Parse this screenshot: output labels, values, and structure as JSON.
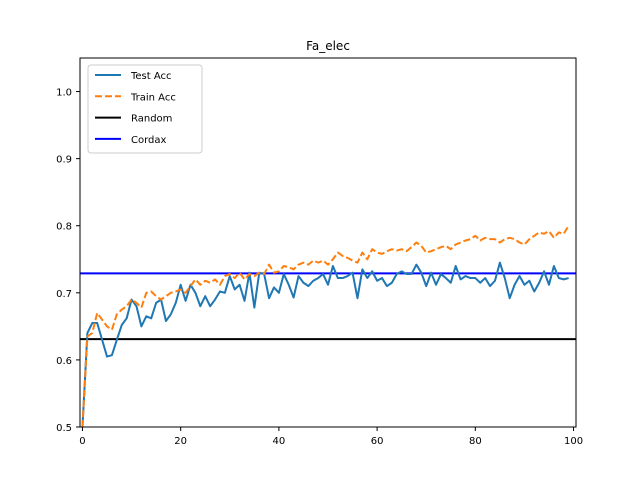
{
  "chart_data": {
    "type": "line",
    "title": "Fa_elec",
    "xlabel": "",
    "ylabel": "",
    "xlim": [
      -0.5,
      100.5
    ],
    "ylim": [
      0.5,
      1.05
    ],
    "xticks": [
      0,
      20,
      40,
      60,
      80,
      100
    ],
    "xtick_labels": [
      "0",
      "20",
      "40",
      "60",
      "80",
      "100"
    ],
    "yticks": [
      0.5,
      0.6,
      0.7,
      0.8,
      0.9,
      1.0
    ],
    "ytick_labels": [
      "0.5",
      "0.6",
      "0.7",
      "0.8",
      "0.9",
      "1.0"
    ],
    "grid": false,
    "legend_position": "top-left",
    "series": [
      {
        "name": "Test Acc",
        "color": "#1f77b4",
        "style": "solid",
        "x": [
          0,
          1,
          2,
          3,
          4,
          5,
          6,
          7,
          8,
          9,
          10,
          11,
          12,
          13,
          14,
          15,
          16,
          17,
          18,
          19,
          20,
          21,
          22,
          23,
          24,
          25,
          26,
          27,
          28,
          29,
          30,
          31,
          32,
          33,
          34,
          35,
          36,
          37,
          38,
          39,
          40,
          41,
          42,
          43,
          44,
          45,
          46,
          47,
          48,
          49,
          50,
          51,
          52,
          53,
          54,
          55,
          56,
          57,
          58,
          59,
          60,
          61,
          62,
          63,
          64,
          65,
          66,
          67,
          68,
          69,
          70,
          71,
          72,
          73,
          74,
          75,
          76,
          77,
          78,
          79,
          80,
          81,
          82,
          83,
          84,
          85,
          86,
          87,
          88,
          89,
          90,
          91,
          92,
          93,
          94,
          95,
          96,
          97,
          98,
          99
        ],
        "values": [
          0.5,
          0.64,
          0.655,
          0.655,
          0.63,
          0.605,
          0.607,
          0.63,
          0.652,
          0.662,
          0.69,
          0.68,
          0.65,
          0.665,
          0.662,
          0.685,
          0.69,
          0.658,
          0.668,
          0.685,
          0.712,
          0.688,
          0.712,
          0.7,
          0.68,
          0.695,
          0.68,
          0.69,
          0.702,
          0.7,
          0.725,
          0.705,
          0.712,
          0.688,
          0.73,
          0.678,
          0.73,
          0.728,
          0.692,
          0.708,
          0.7,
          0.728,
          0.712,
          0.693,
          0.725,
          0.715,
          0.71,
          0.718,
          0.722,
          0.728,
          0.712,
          0.74,
          0.722,
          0.722,
          0.725,
          0.73,
          0.692,
          0.735,
          0.722,
          0.732,
          0.718,
          0.722,
          0.71,
          0.715,
          0.728,
          0.732,
          0.728,
          0.728,
          0.742,
          0.73,
          0.71,
          0.73,
          0.712,
          0.728,
          0.722,
          0.715,
          0.74,
          0.72,
          0.725,
          0.722,
          0.722,
          0.715,
          0.722,
          0.71,
          0.718,
          0.745,
          0.722,
          0.692,
          0.712,
          0.725,
          0.712,
          0.718,
          0.702,
          0.715,
          0.732,
          0.712,
          0.74,
          0.722,
          0.72,
          0.722
        ]
      },
      {
        "name": "Train Acc",
        "color": "#ff7f0e",
        "style": "dashed",
        "x": [
          0,
          1,
          2,
          3,
          4,
          5,
          6,
          7,
          8,
          9,
          10,
          11,
          12,
          13,
          14,
          15,
          16,
          17,
          18,
          19,
          20,
          21,
          22,
          23,
          24,
          25,
          26,
          27,
          28,
          29,
          30,
          31,
          32,
          33,
          34,
          35,
          36,
          37,
          38,
          39,
          40,
          41,
          42,
          43,
          44,
          45,
          46,
          47,
          48,
          49,
          50,
          51,
          52,
          53,
          54,
          55,
          56,
          57,
          58,
          59,
          60,
          61,
          62,
          63,
          64,
          65,
          66,
          67,
          68,
          69,
          70,
          71,
          72,
          73,
          74,
          75,
          76,
          77,
          78,
          79,
          80,
          81,
          82,
          83,
          84,
          85,
          86,
          87,
          88,
          89,
          90,
          91,
          92,
          93,
          94,
          95,
          96,
          97,
          98,
          99
        ],
        "values": [
          0.5,
          0.635,
          0.64,
          0.67,
          0.66,
          0.65,
          0.645,
          0.668,
          0.675,
          0.68,
          0.69,
          0.685,
          0.678,
          0.7,
          0.702,
          0.695,
          0.69,
          0.695,
          0.7,
          0.702,
          0.705,
          0.7,
          0.71,
          0.72,
          0.712,
          0.718,
          0.715,
          0.72,
          0.712,
          0.725,
          0.728,
          0.722,
          0.73,
          0.72,
          0.728,
          0.725,
          0.73,
          0.728,
          0.742,
          0.73,
          0.732,
          0.74,
          0.738,
          0.735,
          0.742,
          0.745,
          0.742,
          0.748,
          0.745,
          0.748,
          0.742,
          0.75,
          0.76,
          0.755,
          0.752,
          0.748,
          0.745,
          0.76,
          0.75,
          0.765,
          0.76,
          0.758,
          0.762,
          0.765,
          0.763,
          0.765,
          0.762,
          0.768,
          0.775,
          0.77,
          0.76,
          0.762,
          0.765,
          0.768,
          0.77,
          0.765,
          0.772,
          0.775,
          0.778,
          0.78,
          0.785,
          0.778,
          0.782,
          0.78,
          0.78,
          0.775,
          0.78,
          0.782,
          0.78,
          0.775,
          0.772,
          0.78,
          0.785,
          0.79,
          0.788,
          0.792,
          0.782,
          0.79,
          0.788,
          0.8
        ]
      },
      {
        "name": "Random",
        "color": "#000000",
        "style": "solid",
        "x": [
          -0.5,
          100.5
        ],
        "values": [
          0.631,
          0.631
        ]
      },
      {
        "name": "Cordax",
        "color": "#0000ff",
        "style": "solid",
        "x": [
          -0.5,
          100.5
        ],
        "values": [
          0.729,
          0.729
        ]
      }
    ]
  }
}
